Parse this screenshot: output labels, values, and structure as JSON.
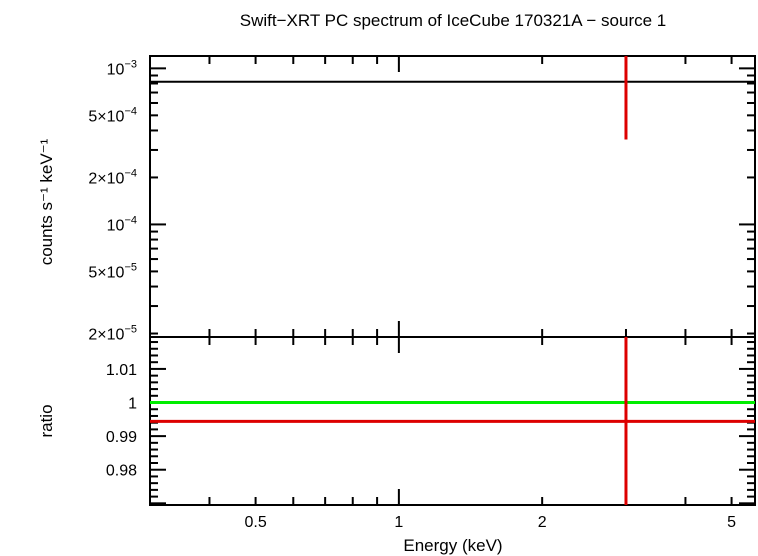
{
  "chart_data": [
    {
      "type": "line",
      "panel": "spectrum",
      "title": "Swift−XRT PC spectrum of IceCube 170321A − source 1",
      "ylabel": "counts s⁻¹ keV⁻¹",
      "xlabel": "",
      "x_scale": "log",
      "y_scale": "log",
      "xlim": [
        0.3,
        5.6
      ],
      "ylim": [
        1.9e-05,
        0.0012
      ],
      "y_ticks": [
        {
          "value": 0.001,
          "mantissa": "",
          "exp": "−3"
        },
        {
          "value": 0.0005,
          "mantissa": "5×",
          "exp": "−4"
        },
        {
          "value": 0.0002,
          "mantissa": "2×",
          "exp": "−4"
        },
        {
          "value": 0.0001,
          "mantissa": "",
          "exp": "−4"
        },
        {
          "value": 5e-05,
          "mantissa": "5×",
          "exp": "−5"
        },
        {
          "value": 2e-05,
          "mantissa": "2×",
          "exp": "−5"
        }
      ],
      "series": [
        {
          "color": "#000000",
          "kind": "model",
          "segments": [
            {
              "x": [
                0.3,
                5.6
              ],
              "y": [
                0.00082,
                0.00082
              ]
            }
          ]
        },
        {
          "color": "#dd0000",
          "kind": "data",
          "points": [
            {
              "x": 3.0,
              "y": 0.00082,
              "y_low": 0.00035,
              "y_high": 0.0012
            }
          ]
        }
      ],
      "grid": false
    },
    {
      "type": "line",
      "panel": "ratio",
      "ylabel": "ratio",
      "xlabel": "Energy (keV)",
      "x_scale": "log",
      "y_scale": "linear",
      "xlim": [
        0.3,
        5.6
      ],
      "ylim": [
        0.9695,
        1.0195
      ],
      "x_ticks": [
        {
          "value": 0.5,
          "label": "0.5"
        },
        {
          "value": 1,
          "label": "1"
        },
        {
          "value": 2,
          "label": "2"
        },
        {
          "value": 5,
          "label": "5"
        }
      ],
      "y_ticks": [
        {
          "value": 1.01,
          "label": "1.01"
        },
        {
          "value": 1,
          "label": "1"
        },
        {
          "value": 0.99,
          "label": "0.99"
        },
        {
          "value": 0.98,
          "label": "0.98"
        }
      ],
      "series": [
        {
          "color": "#00ee00",
          "kind": "reference",
          "segments": [
            {
              "x": [
                0.3,
                5.6
              ],
              "y": [
                1.0,
                1.0
              ]
            }
          ]
        },
        {
          "color": "#dd0000",
          "kind": "data",
          "points": [
            {
              "x": 3.0,
              "y": 0.9944,
              "y_low": 0.9695,
              "y_high": 1.0195,
              "x_low": 0.3,
              "x_high": 5.6
            }
          ]
        }
      ],
      "grid": false
    }
  ]
}
